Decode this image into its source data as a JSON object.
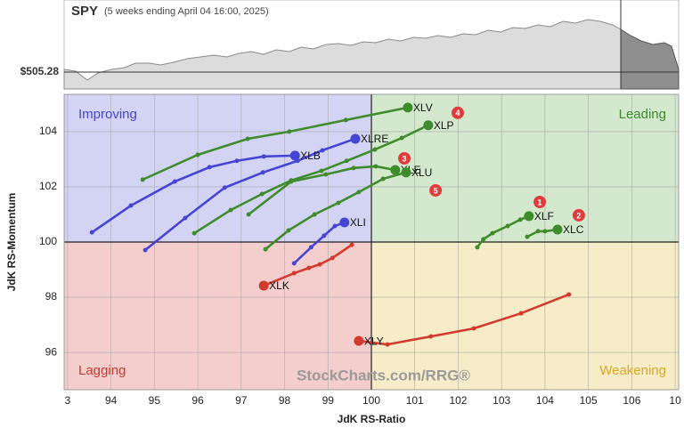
{
  "chart_data": {
    "type": "rrg",
    "title": "SPY",
    "subtitle": "(5 weeks ending April 04 16:00, 2025)",
    "price_label": "$505.28",
    "x_label": "JdK RS-Ratio",
    "y_label": "JdK RS-Momentum",
    "quadrants": {
      "improving": "Improving",
      "leading": "Leading",
      "lagging": "Lagging",
      "weakening": "Weakening"
    },
    "watermark": "StockCharts.com/RRG®",
    "center": {
      "x": 100,
      "y": 100
    },
    "xlim": [
      92.92,
      107.08
    ],
    "ylim": [
      94.65,
      105.35
    ],
    "xticks": [
      {
        "value": 93,
        "label": "3"
      },
      94,
      95,
      96,
      97,
      98,
      99,
      100,
      101,
      102,
      103,
      104,
      105,
      106,
      {
        "value": 107,
        "label": "10"
      }
    ],
    "yticks": [
      96,
      98,
      100,
      102,
      104
    ],
    "grid": true,
    "series": [
      {
        "name": "XLV",
        "color": "#3f8c2c",
        "x": [
          94.73,
          96.0,
          97.15,
          98.11,
          99.41,
          100.84
        ],
        "y": [
          102.26,
          103.16,
          103.74,
          104.0,
          104.42,
          104.87
        ]
      },
      {
        "name": "XLP",
        "color": "#3f8c2c",
        "x": [
          95.92,
          96.76,
          97.48,
          98.15,
          98.85,
          99.43,
          100.08,
          100.7,
          101.31
        ],
        "y": [
          100.32,
          101.16,
          101.74,
          102.23,
          102.58,
          102.94,
          103.35,
          103.77,
          104.23
        ]
      },
      {
        "name": "XLRE",
        "color": "#4545d4",
        "x": [
          94.79,
          95.71,
          96.62,
          97.5,
          98.3,
          98.87,
          99.63
        ],
        "y": [
          99.71,
          100.87,
          101.97,
          102.52,
          102.94,
          103.32,
          103.74
        ]
      },
      {
        "name": "XLB",
        "color": "#4545d4",
        "x": [
          93.56,
          94.46,
          95.47,
          96.27,
          96.9,
          97.52,
          98.24
        ],
        "y": [
          100.35,
          101.32,
          102.19,
          102.71,
          102.94,
          103.1,
          103.13
        ]
      },
      {
        "name": "XLE",
        "color": "#3f8c2c",
        "x": [
          97.17,
          98.15,
          98.95,
          99.59,
          100.1,
          100.55
        ],
        "y": [
          101.0,
          102.19,
          102.45,
          102.68,
          102.74,
          102.61
        ]
      },
      {
        "name": "XLU",
        "color": "#3f8c2c",
        "x": [
          97.56,
          98.09,
          98.69,
          99.24,
          99.71,
          100.27,
          100.8
        ],
        "y": [
          99.74,
          100.42,
          101.0,
          101.42,
          101.81,
          102.29,
          102.52
        ]
      },
      {
        "name": "XLI",
        "color": "#4545d4",
        "x": [
          98.22,
          98.61,
          98.91,
          99.16,
          99.38
        ],
        "y": [
          99.23,
          99.81,
          100.23,
          100.58,
          100.71
        ]
      },
      {
        "name": "XLF",
        "color": "#3f8c2c",
        "x": [
          102.44,
          102.58,
          102.79,
          103.14,
          103.43,
          103.63
        ],
        "y": [
          99.81,
          100.1,
          100.32,
          100.58,
          100.81,
          100.94
        ]
      },
      {
        "name": "XLC",
        "color": "#3f8c2c",
        "x": [
          103.59,
          103.84,
          104.0,
          104.29
        ],
        "y": [
          100.19,
          100.39,
          100.39,
          100.45
        ]
      },
      {
        "name": "XLK",
        "color": "#d23b2b",
        "x": [
          99.55,
          99.1,
          98.81,
          98.56,
          98.22,
          97.52
        ],
        "y": [
          99.9,
          99.42,
          99.19,
          99.06,
          98.87,
          98.42
        ]
      },
      {
        "name": "XLY",
        "color": "#d23b2b",
        "x": [
          104.55,
          103.45,
          102.36,
          101.37,
          100.37,
          99.71
        ],
        "y": [
          98.1,
          97.42,
          96.87,
          96.58,
          96.29,
          96.42
        ]
      }
    ],
    "markers": [
      {
        "n": 1,
        "x": 103.88,
        "y": 101.45
      },
      {
        "n": 2,
        "x": 104.78,
        "y": 100.97
      },
      {
        "n": 3,
        "x": 100.76,
        "y": 103.03
      },
      {
        "n": 4,
        "x": 101.99,
        "y": 104.68
      },
      {
        "n": 5,
        "x": 101.48,
        "y": 101.87
      }
    ]
  }
}
